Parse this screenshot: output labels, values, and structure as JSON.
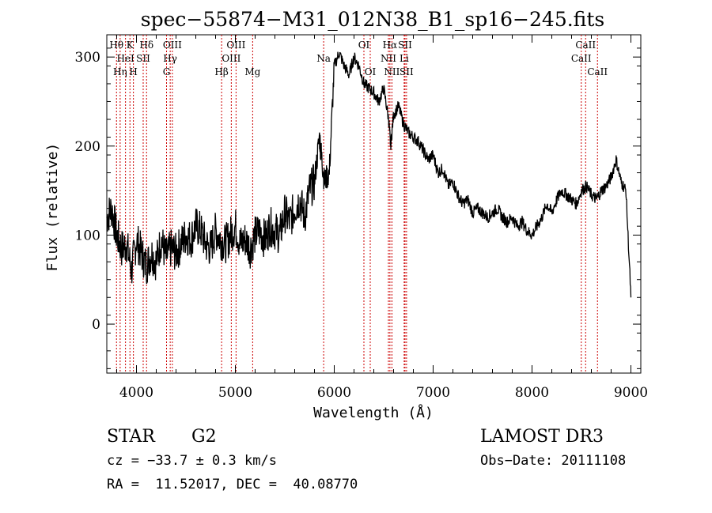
{
  "chart_data": {
    "type": "line",
    "title": "spec−55874−M31_012N38_B1_sp16−245.fits",
    "xlabel": "Wavelength (Å)",
    "ylabel": "Flux (relative)",
    "xlim": [
      3700,
      9100
    ],
    "ylim": [
      -55,
      325
    ],
    "x_ticks": [
      4000,
      5000,
      6000,
      7000,
      8000,
      9000
    ],
    "y_ticks": [
      0,
      100,
      200,
      300
    ],
    "grid": false,
    "series": [
      {
        "name": "spectrum",
        "x": [
          3700,
          3750,
          3800,
          3850,
          3900,
          3950,
          4000,
          4050,
          4100,
          4150,
          4200,
          4250,
          4300,
          4350,
          4400,
          4450,
          4500,
          4550,
          4600,
          4650,
          4700,
          4750,
          4800,
          4850,
          4900,
          4950,
          5000,
          5050,
          5100,
          5150,
          5200,
          5250,
          5300,
          5350,
          5400,
          5450,
          5500,
          5550,
          5600,
          5650,
          5700,
          5750,
          5800,
          5850,
          5870,
          5900,
          5950,
          6000,
          6050,
          6100,
          6150,
          6200,
          6250,
          6300,
          6350,
          6400,
          6450,
          6500,
          6550,
          6570,
          6600,
          6650,
          6700,
          6750,
          6800,
          6850,
          6900,
          6950,
          7000,
          7050,
          7100,
          7150,
          7200,
          7250,
          7300,
          7350,
          7400,
          7450,
          7500,
          7550,
          7600,
          7650,
          7700,
          7750,
          7800,
          7850,
          7900,
          7950,
          8000,
          8050,
          8100,
          8150,
          8200,
          8250,
          8300,
          8350,
          8400,
          8450,
          8500,
          8550,
          8600,
          8650,
          8700,
          8750,
          8800,
          8850,
          8900,
          8950,
          9000
        ],
        "y": [
          120,
          130,
          100,
          85,
          90,
          60,
          95,
          80,
          65,
          80,
          70,
          95,
          75,
          85,
          80,
          90,
          100,
          95,
          110,
          105,
          90,
          85,
          105,
          95,
          90,
          100,
          110,
          90,
          95,
          85,
          100,
          105,
          95,
          110,
          105,
          100,
          125,
          115,
          130,
          140,
          120,
          150,
          160,
          210,
          190,
          160,
          170,
          290,
          305,
          290,
          280,
          300,
          290,
          270,
          265,
          260,
          250,
          265,
          230,
          200,
          235,
          245,
          225,
          215,
          210,
          205,
          195,
          185,
          190,
          170,
          175,
          155,
          160,
          145,
          135,
          140,
          125,
          130,
          125,
          120,
          125,
          130,
          120,
          115,
          120,
          110,
          115,
          105,
          100,
          110,
          120,
          135,
          125,
          140,
          150,
          145,
          140,
          135,
          150,
          155,
          145,
          140,
          150,
          155,
          165,
          185,
          160,
          150,
          30
        ],
        "color": "#000000"
      }
    ],
    "lines": [
      {
        "name": "Hθ",
        "wave": 3798,
        "row": 1
      },
      {
        "name": "Hη",
        "wave": 3835,
        "row": 3
      },
      {
        "name": "HeI",
        "wave": 3889,
        "row": 2
      },
      {
        "name": "K",
        "wave": 3934,
        "row": 1
      },
      {
        "name": "H",
        "wave": 3969,
        "row": 3
      },
      {
        "name": "SII",
        "wave": 4068,
        "row": 2
      },
      {
        "name": "Hδ",
        "wave": 4102,
        "row": 1
      },
      {
        "name": "G",
        "wave": 4304,
        "row": 3
      },
      {
        "name": "Hγ",
        "wave": 4341,
        "row": 2
      },
      {
        "name": "OIII",
        "wave": 4363,
        "row": 1
      },
      {
        "name": "Hβ",
        "wave": 4861,
        "row": 3
      },
      {
        "name": "OIII",
        "wave": 4959,
        "row": 2
      },
      {
        "name": "OIII",
        "wave": 5007,
        "row": 1
      },
      {
        "name": "Mg",
        "wave": 5175,
        "row": 3
      },
      {
        "name": "Na",
        "wave": 5893,
        "row": 2
      },
      {
        "name": "OI",
        "wave": 6300,
        "row": 1
      },
      {
        "name": "OI",
        "wave": 6364,
        "row": 3
      },
      {
        "name": "NII",
        "wave": 6548,
        "row": 2
      },
      {
        "name": "Hα",
        "wave": 6563,
        "row": 1
      },
      {
        "name": "NII",
        "wave": 6583,
        "row": 3
      },
      {
        "name": "Li",
        "wave": 6707,
        "row": 2
      },
      {
        "name": "SII",
        "wave": 6716,
        "row": 1
      },
      {
        "name": "SII",
        "wave": 6731,
        "row": 3
      },
      {
        "name": "CaII",
        "wave": 8498,
        "row": 2
      },
      {
        "name": "CaII",
        "wave": 8542,
        "row": 1
      },
      {
        "name": "CaII",
        "wave": 8662,
        "row": 3
      }
    ],
    "line_color": "#cc0000"
  },
  "info": {
    "class": "STAR",
    "subclass": "G2",
    "survey": "LAMOST DR3",
    "cz": "cz = −33.7 ± 0.3 km/s",
    "obs_date": "Obs−Date: 20111108",
    "coords": "RA =  11.52017, DEC =  40.08770"
  }
}
